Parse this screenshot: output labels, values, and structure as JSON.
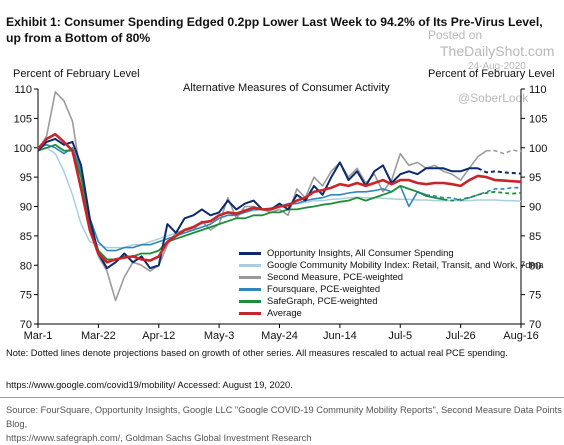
{
  "title": "Exhibit 1: Consumer Spending Edged 0.2pp Lower Last Week to 94.2% of Its Pre-Virus Level, up from a Bottom of 80%",
  "watermark": {
    "posted": "Posted on",
    "site": "TheDailyShot.com",
    "date": "24-Aug-2020",
    "handle": "@SoberLook"
  },
  "footer": {
    "note": "Note: Dotted lines denote projections based on growth of other series. All measures rescaled to actual real PCE spending.",
    "url": "https://www.google.com/covid19/mobility/ Accessed: August 19, 2020.",
    "source_line1": "Source: FourSquare, Opportunity Insights, Google LLC \"Google COVID-19 Community Mobility Reports\", Second Measure Data Points Blog,",
    "source_line2": "https://www.safegraph.com/, Goldman Sachs Global Investment Research"
  },
  "chart_data": {
    "type": "line",
    "title": "Alternative Measures of Consumer Activity",
    "ylabel_left": "Percent of February Level",
    "ylabel_right": "Percent of February Level",
    "ylim": [
      70,
      110
    ],
    "yticks": [
      70,
      75,
      80,
      85,
      90,
      95,
      100,
      105,
      110
    ],
    "x_tick_labels": [
      "Mar-1",
      "Mar-22",
      "Apr-12",
      "May-3",
      "May-24",
      "Jun-14",
      "Jul-5",
      "Jul-26",
      "Aug-16"
    ],
    "x_tick_days": [
      0,
      21,
      42,
      63,
      84,
      105,
      126,
      147,
      168
    ],
    "grid": false,
    "legend_position": "lower-right",
    "series": [
      {
        "name": "Opportunity Insights, All Consumer Spending",
        "color": "#0b2a6b",
        "x": [
          0,
          3,
          6,
          9,
          12,
          15,
          18,
          21,
          24,
          27,
          30,
          33,
          36,
          39,
          42,
          45,
          48,
          51,
          54,
          57,
          60,
          63,
          66,
          69,
          72,
          75,
          78,
          81,
          84,
          87,
          90,
          93,
          96,
          99,
          102,
          105,
          108,
          111,
          114,
          117,
          120,
          123,
          126,
          129,
          132,
          135,
          138,
          141,
          144,
          147,
          150,
          153,
          156,
          159,
          162,
          165,
          168
        ],
        "values": [
          99.5,
          101,
          101.5,
          100.5,
          101,
          97,
          88,
          82,
          79.5,
          80.5,
          82,
          80.5,
          81.5,
          79.5,
          80,
          87,
          85.5,
          88,
          88.5,
          89.5,
          88.5,
          89,
          91,
          89.5,
          90.5,
          91,
          89.5,
          89.5,
          90.5,
          89.5,
          92,
          91,
          93.5,
          92,
          95,
          97.5,
          94.5,
          96,
          93.5,
          96,
          97,
          94,
          95.5,
          96,
          95.5,
          96.5,
          96.5,
          96.5,
          96,
          96,
          96.5,
          96.5,
          95.8,
          96,
          95.8,
          95.7,
          95.6
        ],
        "projected_from_index": 51
      },
      {
        "name": "Google Community Mobility Index: Retail, Transit, and Work, 7dma",
        "color": "#a8cfe0",
        "x": [
          0,
          3,
          6,
          9,
          12,
          15,
          18,
          21,
          24,
          27,
          30,
          33,
          36,
          39,
          42,
          45,
          48,
          51,
          54,
          57,
          60,
          63,
          66,
          69,
          72,
          75,
          78,
          81,
          84,
          87,
          90,
          93,
          96,
          99,
          102,
          105,
          108,
          111,
          114,
          117,
          120,
          123,
          126,
          129,
          132,
          135,
          138,
          141,
          144,
          147,
          150,
          153,
          156,
          159,
          162,
          165,
          168
        ],
        "values": [
          100,
          100,
          99,
          96,
          92,
          87,
          84,
          83.5,
          83,
          83,
          83,
          83.5,
          83.5,
          84,
          84.5,
          85,
          85.5,
          86,
          86.5,
          87,
          87.5,
          88,
          88.5,
          88.8,
          89,
          89.3,
          89.5,
          89.8,
          90,
          90.2,
          90.5,
          90.7,
          91,
          91,
          91.2,
          91.3,
          91.5,
          91.6,
          91.5,
          91.5,
          91.4,
          91.3,
          91.2,
          91.2,
          91.1,
          91.1,
          91,
          91,
          91,
          91,
          91,
          91.1,
          91.1,
          91.1,
          91,
          91,
          90.9
        ]
      },
      {
        "name": "Second Measure, PCE-weighted",
        "color": "#9b9b9b",
        "x": [
          0,
          3,
          6,
          9,
          12,
          15,
          18,
          21,
          24,
          27,
          30,
          33,
          36,
          39,
          42,
          45,
          48,
          51,
          54,
          57,
          60,
          63,
          66,
          69,
          72,
          75,
          78,
          81,
          84,
          87,
          90,
          93,
          96,
          99,
          102,
          105,
          108,
          111,
          114,
          117,
          120,
          123,
          126,
          129,
          132,
          135,
          138,
          141,
          144,
          147,
          150,
          153,
          156,
          159,
          162,
          165,
          168
        ],
        "values": [
          99.5,
          102,
          109.5,
          108,
          104.5,
          95,
          86,
          81.5,
          79,
          74,
          78,
          80.5,
          80,
          79,
          80,
          83.5,
          85.5,
          86,
          86,
          87.5,
          86,
          87,
          91.5,
          88,
          90,
          90,
          89.5,
          89,
          89.5,
          88.5,
          93,
          91.5,
          95,
          93.5,
          96,
          97.5,
          95,
          96.5,
          94,
          95.5,
          92.5,
          94.5,
          99,
          97,
          97.5,
          96.5,
          97,
          96,
          95.5,
          94.5,
          96.5,
          98.5,
          99.5,
          99.5,
          99,
          99.6,
          99.4
        ],
        "projected_from_index": 52
      },
      {
        "name": "Foursquare, PCE-weighted",
        "color": "#2e87b8",
        "x": [
          0,
          3,
          6,
          9,
          12,
          15,
          18,
          21,
          24,
          27,
          30,
          33,
          36,
          39,
          42,
          45,
          48,
          51,
          54,
          57,
          60,
          63,
          66,
          69,
          72,
          75,
          78,
          81,
          84,
          87,
          90,
          93,
          96,
          99,
          102,
          105,
          108,
          111,
          114,
          117,
          120,
          123,
          126,
          129,
          132,
          135,
          138,
          141,
          144,
          147,
          150,
          153,
          156,
          159,
          162,
          165,
          168
        ],
        "values": [
          100,
          100.5,
          100,
          99,
          100,
          96,
          88,
          84,
          82.5,
          82.5,
          83,
          83,
          83.5,
          83.5,
          84,
          84.5,
          85,
          85.5,
          86,
          86.5,
          87,
          88,
          88.5,
          88.5,
          89,
          89.5,
          89.5,
          89.7,
          90,
          90.5,
          90.5,
          91,
          91.3,
          91.5,
          92,
          92,
          92.3,
          92.5,
          92.5,
          92.7,
          93,
          92.5,
          93.5,
          90,
          92.5,
          92,
          91.8,
          91.5,
          91.5,
          91,
          91.5,
          92,
          92.5,
          93,
          93,
          93.2,
          93.2
        ],
        "projected_from_index": 45
      },
      {
        "name": "SafeGraph, PCE-weighted",
        "color": "#1e8c3a",
        "x": [
          0,
          3,
          6,
          9,
          12,
          15,
          18,
          21,
          24,
          27,
          30,
          33,
          36,
          39,
          42,
          45,
          48,
          51,
          54,
          57,
          60,
          63,
          66,
          69,
          72,
          75,
          78,
          81,
          84,
          87,
          90,
          93,
          96,
          99,
          102,
          105,
          108,
          111,
          114,
          117,
          120,
          123,
          126,
          129,
          132,
          135,
          138,
          141,
          144,
          147,
          150,
          153,
          156,
          159,
          162,
          165,
          168
        ],
        "values": [
          99.5,
          100,
          100.5,
          99.5,
          99.5,
          95,
          87,
          82.5,
          81,
          81,
          81.5,
          81.5,
          82,
          82,
          82.5,
          84,
          84.5,
          85,
          85.5,
          86,
          86.5,
          87,
          87.5,
          88,
          88,
          88.5,
          88.5,
          89,
          89,
          89.5,
          89.5,
          89.8,
          90,
          90.3,
          90.5,
          90.8,
          91,
          91.5,
          91,
          91.5,
          92,
          92.5,
          93.5,
          93,
          92.5,
          91.8,
          91.5,
          91.2,
          91,
          91.2,
          91.5,
          92,
          92.3,
          92.5,
          92.3,
          92.2,
          92.3
        ],
        "projected_from_index": 47
      },
      {
        "name": "Average",
        "color": "#c8252b",
        "x": [
          0,
          3,
          6,
          9,
          12,
          15,
          18,
          21,
          24,
          27,
          30,
          33,
          36,
          39,
          42,
          45,
          48,
          51,
          54,
          57,
          60,
          63,
          66,
          69,
          72,
          75,
          78,
          81,
          84,
          87,
          90,
          93,
          96,
          99,
          102,
          105,
          108,
          111,
          114,
          117,
          120,
          123,
          126,
          129,
          132,
          135,
          138,
          141,
          144,
          147,
          150,
          153,
          156,
          159,
          162,
          165,
          168
        ],
        "values": [
          99.8,
          101.5,
          102.3,
          101,
          99.5,
          93,
          86,
          82,
          80.5,
          81,
          81.3,
          81.5,
          81,
          80.8,
          81.5,
          84,
          85,
          86,
          86.5,
          87.3,
          87.5,
          88.5,
          89,
          88.8,
          89.3,
          89.8,
          89.5,
          89.5,
          90,
          90.2,
          91,
          91.5,
          92.5,
          92.8,
          93.2,
          93.8,
          93.5,
          94,
          93.5,
          94,
          94.5,
          93.8,
          94.5,
          94.5,
          94,
          93.8,
          94,
          94,
          93.8,
          93.5,
          94.5,
          95.2,
          95,
          94.5,
          94.4,
          94.3,
          94.2
        ]
      }
    ]
  }
}
